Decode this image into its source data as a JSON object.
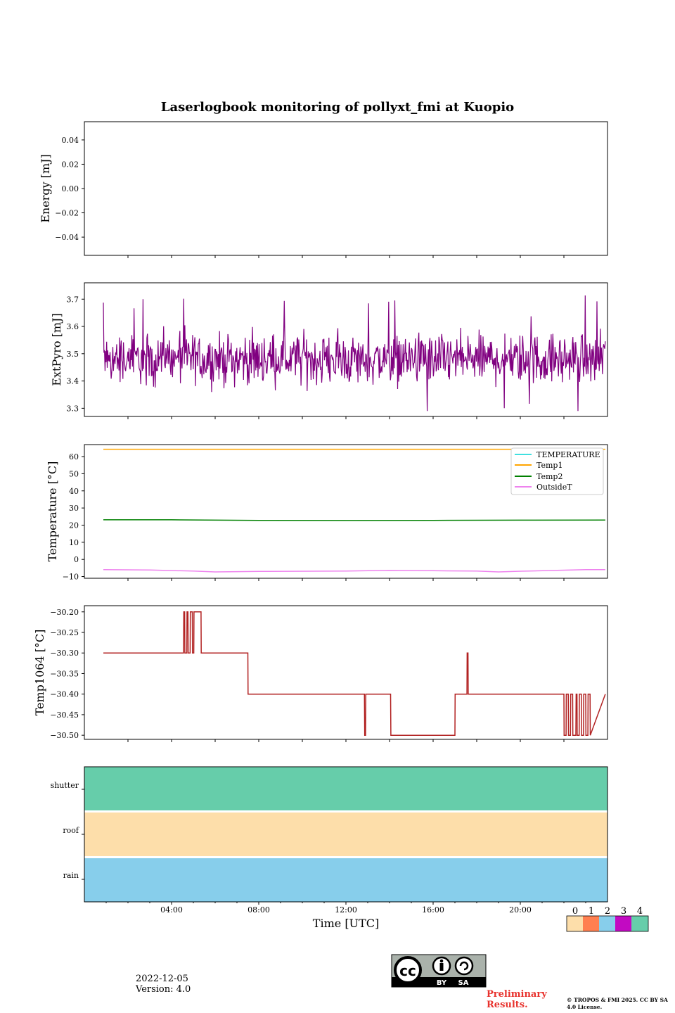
{
  "title": "Laserlogbook monitoring of pollyxt_fmi at Kuopio",
  "footer": {
    "date": "2022-12-05",
    "version": "Version: 4.0",
    "preliminary": "Preliminary Results.",
    "copyright": "© TROPOS & FMI 2025. CC BY SA 4.0 License.",
    "license_badge": {
      "by": "BY",
      "sa": "SA"
    }
  },
  "chart_data": [
    {
      "type": "line",
      "id": "energy",
      "ylabel": "Energy [mJ]",
      "ylim": [
        -0.055,
        0.055
      ],
      "yticks": [
        0.04,
        0.02,
        0.0,
        -0.02,
        -0.04
      ],
      "ytick_labels": [
        "0.04",
        "0.02",
        "0.00",
        "−0.02",
        "−0.04"
      ],
      "series": []
    },
    {
      "type": "line",
      "id": "extpyro",
      "ylabel": "ExtPyro [mJ]",
      "ylim": [
        3.27,
        3.76
      ],
      "yticks": [
        3.3,
        3.4,
        3.5,
        3.6,
        3.7
      ],
      "ytick_labels": [
        "3.3",
        "3.4",
        "3.5",
        "3.6",
        "3.7"
      ],
      "series": [
        {
          "name": "ExtPyro",
          "color": "#800080",
          "mean": 3.48,
          "min": 3.29,
          "max": 3.74,
          "t_start_h": 0.87,
          "t_end_h": 23.9
        }
      ]
    },
    {
      "type": "line",
      "id": "temperature",
      "ylabel": "Temperature [°C]",
      "ylim": [
        -11,
        67
      ],
      "yticks": [
        -10,
        0,
        10,
        20,
        30,
        40,
        50,
        60
      ],
      "ytick_labels": [
        "−10",
        "0",
        "10",
        "20",
        "30",
        "40",
        "50",
        "60"
      ],
      "series": [
        {
          "name": "TEMPERATURE",
          "color": "#40e0e0",
          "values": []
        },
        {
          "name": "Temp1",
          "color": "#ffa500",
          "t": [
            0.87,
            23.9
          ],
          "values": [
            64.3,
            64.3
          ]
        },
        {
          "name": "Temp2",
          "color": "#008000",
          "t": [
            0.87,
            4,
            8,
            12,
            16,
            20,
            23.9
          ],
          "values": [
            23.1,
            23.1,
            22.8,
            22.7,
            22.8,
            22.9,
            23.0
          ]
        },
        {
          "name": "OutsideT",
          "color": "#ee82ee",
          "t": [
            0.87,
            3,
            5,
            6,
            8,
            12,
            14,
            16,
            18,
            19,
            20,
            23,
            23.9
          ],
          "values": [
            -6.0,
            -6.2,
            -6.8,
            -7.3,
            -7.0,
            -6.8,
            -6.4,
            -6.6,
            -6.8,
            -7.3,
            -6.9,
            -6.0,
            -6.0
          ]
        }
      ]
    },
    {
      "type": "line",
      "id": "temp1064",
      "ylabel": "Temp1064 [°C]",
      "ylim": [
        -30.51,
        -30.185
      ],
      "yticks": [
        -30.2,
        -30.25,
        -30.3,
        -30.35,
        -30.4,
        -30.45,
        -30.5
      ],
      "ytick_labels": [
        "−30.20",
        "−30.25",
        "−30.30",
        "−30.35",
        "−30.40",
        "−30.45",
        "−30.50"
      ],
      "series": [
        {
          "name": "Temp1064",
          "color": "#b22222",
          "t": [
            0.87,
            4.55,
            4.56,
            4.6,
            4.61,
            4.7,
            4.71,
            4.75,
            4.76,
            4.85,
            4.86,
            4.95,
            4.96,
            5.02,
            5.03,
            5.35,
            5.36,
            7.5,
            7.51,
            12.85,
            12.86,
            12.9,
            12.91,
            14.05,
            14.06,
            14.1,
            14.11,
            17.0,
            17.01,
            17.55,
            17.56,
            17.6,
            17.61,
            22.0,
            22.01,
            22.1,
            22.11,
            22.2,
            22.21,
            22.3,
            22.31,
            22.4,
            22.41,
            22.55,
            22.56,
            22.6,
            22.61,
            22.7,
            22.71,
            22.8,
            22.81,
            22.9,
            22.91,
            23.0,
            23.01,
            23.1,
            23.11,
            23.2,
            23.21,
            23.9
          ],
          "values": [
            -30.3,
            -30.3,
            -30.2,
            -30.2,
            -30.3,
            -30.3,
            -30.2,
            -30.2,
            -30.3,
            -30.3,
            -30.2,
            -30.2,
            -30.3,
            -30.3,
            -30.2,
            -30.2,
            -30.3,
            -30.3,
            -30.4,
            -30.4,
            -30.5,
            -30.5,
            -30.4,
            -30.4,
            -30.5,
            -30.5,
            -30.5,
            -30.5,
            -30.4,
            -30.4,
            -30.3,
            -30.3,
            -30.4,
            -30.4,
            -30.5,
            -30.5,
            -30.4,
            -30.4,
            -30.5,
            -30.5,
            -30.4,
            -30.4,
            -30.5,
            -30.5,
            -30.4,
            -30.4,
            -30.5,
            -30.5,
            -30.4,
            -30.4,
            -30.5,
            -30.5,
            -30.4,
            -30.4,
            -30.5,
            -30.5,
            -30.4,
            -30.4,
            -30.5,
            -30.4
          ]
        }
      ]
    },
    {
      "type": "heatmap",
      "id": "status",
      "rows": [
        "shutter",
        "roof",
        "rain"
      ],
      "row_values": [
        4,
        0,
        2
      ],
      "xlabel": "Time [UTC]",
      "xlim": [
        0,
        24
      ],
      "xticks": [
        4,
        8,
        12,
        16,
        20
      ],
      "xtick_labels": [
        "04:00",
        "08:00",
        "12:00",
        "16:00",
        "20:00"
      ],
      "colorbar": {
        "labels": [
          "0",
          "1",
          "2",
          "3",
          "4"
        ],
        "colors": [
          "#fddeaa",
          "#ff7f50",
          "#87ceeb",
          "#c20ac2",
          "#66cdaa"
        ]
      }
    }
  ]
}
